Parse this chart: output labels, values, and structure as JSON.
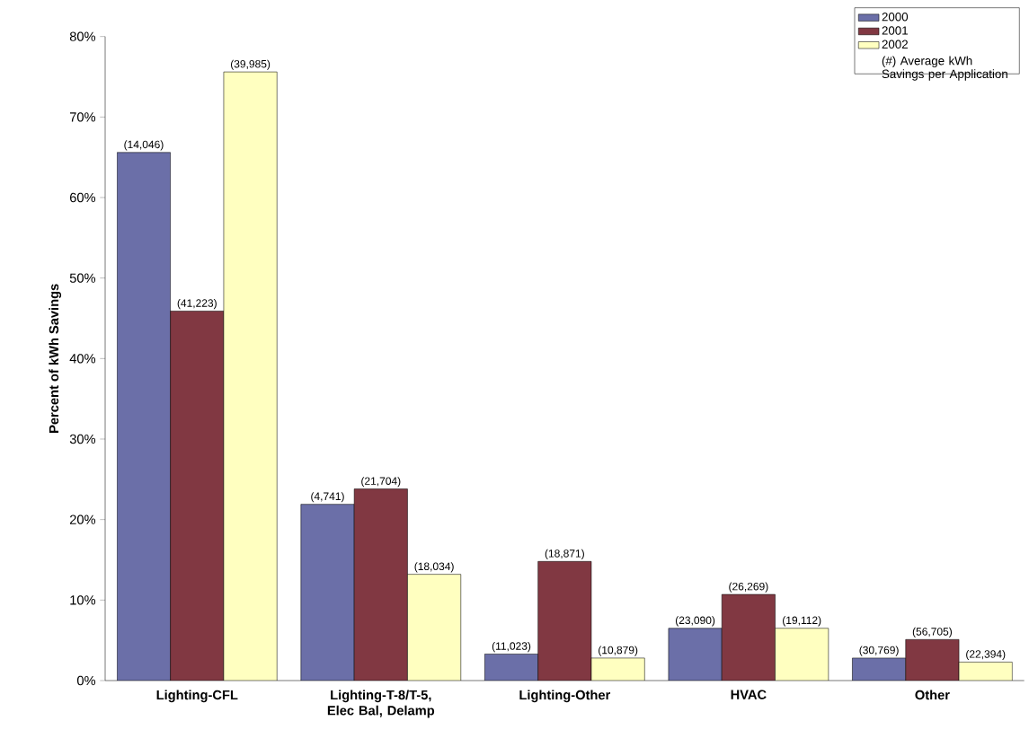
{
  "chart_data": {
    "type": "bar",
    "ylabel": "Percent of kWh Savings",
    "categories": [
      "Lighting-CFL",
      "Lighting-T-8/T-5, Elec Bal, Delamp",
      "Lighting-Other",
      "HVAC",
      "Other"
    ],
    "series": [
      {
        "name": "2000",
        "color": "#6b6fa8",
        "values": [
          65.6,
          21.9,
          3.3,
          6.5,
          2.8
        ]
      },
      {
        "name": "2001",
        "color": "#813842",
        "values": [
          45.9,
          23.8,
          14.8,
          10.7,
          5.1
        ]
      },
      {
        "name": "2002",
        "color": "#ffffc0",
        "values": [
          75.6,
          13.2,
          2.8,
          6.5,
          2.3
        ]
      }
    ],
    "ylim": [
      0,
      80
    ],
    "yticks": [
      {
        "value": 0,
        "label": "0%"
      },
      {
        "value": 10,
        "label": "10%"
      },
      {
        "value": 20,
        "label": "20%"
      },
      {
        "value": 30,
        "label": "30%"
      },
      {
        "value": 40,
        "label": "40%"
      },
      {
        "value": 50,
        "label": "50%"
      },
      {
        "value": 60,
        "label": "60%"
      },
      {
        "value": 70,
        "label": "70%"
      },
      {
        "value": 80,
        "label": "80%"
      }
    ],
    "legend": "top right",
    "grid": false,
    "annotations": [
      "(#)  Average kWh Savings per Application",
      "(14,046)",
      "(4,741)",
      "(11,023)",
      "(23,090)",
      "(30,769)",
      "(41,223)",
      "(21,704)",
      "(18,871)",
      "(26,269)",
      "(56,705)",
      "(39,985)",
      "(18,034)",
      "(10,879)",
      "(19,112)",
      "(22,394)"
    ]
  }
}
